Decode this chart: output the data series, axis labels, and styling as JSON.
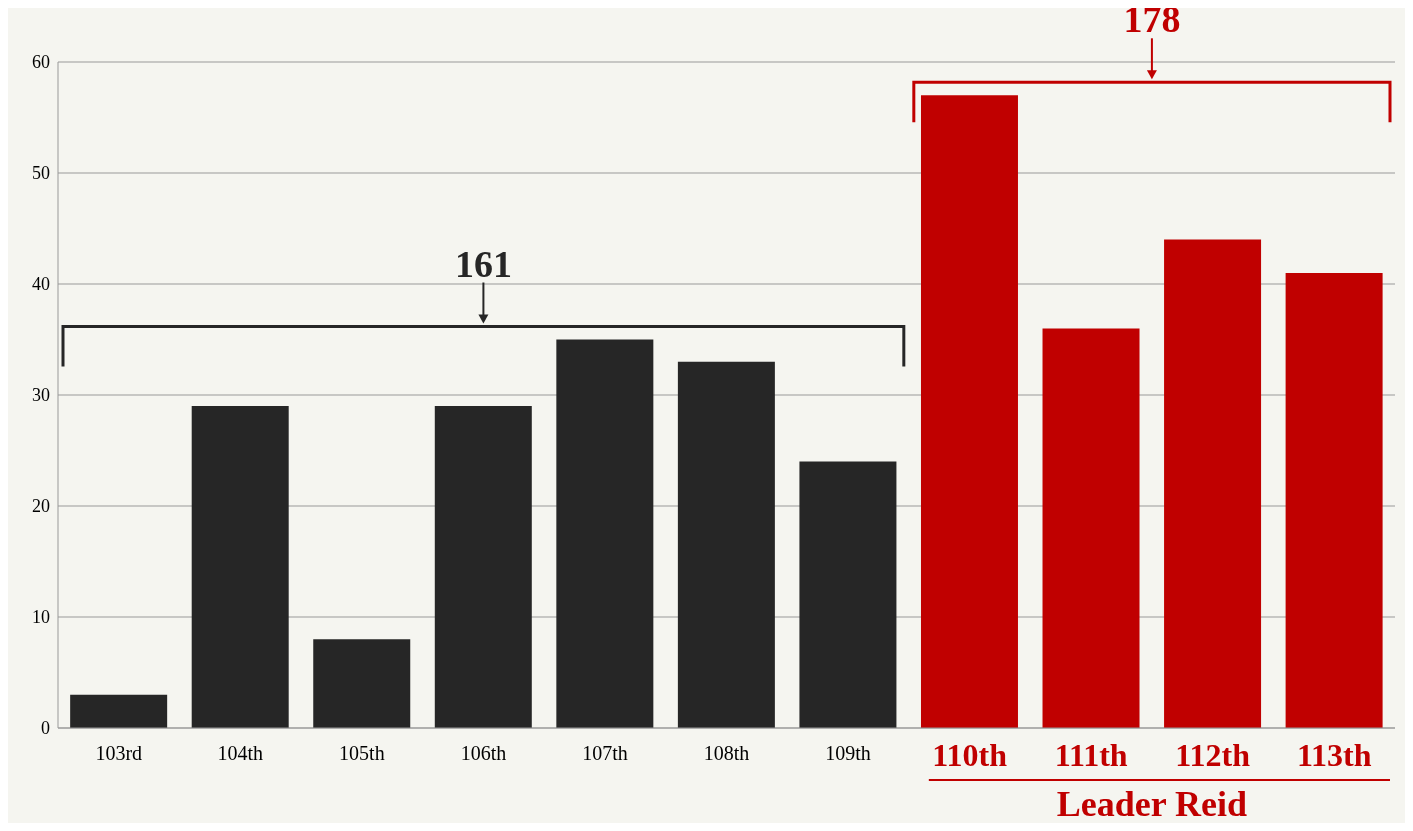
{
  "chart_data": {
    "type": "bar",
    "categories": [
      "103rd",
      "104th",
      "105th",
      "106th",
      "107th",
      "108th",
      "109th",
      "110th",
      "111th",
      "112th",
      "113th"
    ],
    "values": [
      3,
      29,
      8,
      29,
      35,
      33,
      24,
      57,
      36,
      44,
      41
    ],
    "colors": [
      "#262626",
      "#262626",
      "#262626",
      "#262626",
      "#262626",
      "#262626",
      "#262626",
      "#c00000",
      "#c00000",
      "#c00000",
      "#c00000"
    ],
    "ylim": [
      0,
      60
    ],
    "yticks": [
      0,
      10,
      20,
      30,
      40,
      50,
      60
    ],
    "grid": "y",
    "annotations": [
      "161",
      "178",
      "Leader Reid"
    ]
  }
}
